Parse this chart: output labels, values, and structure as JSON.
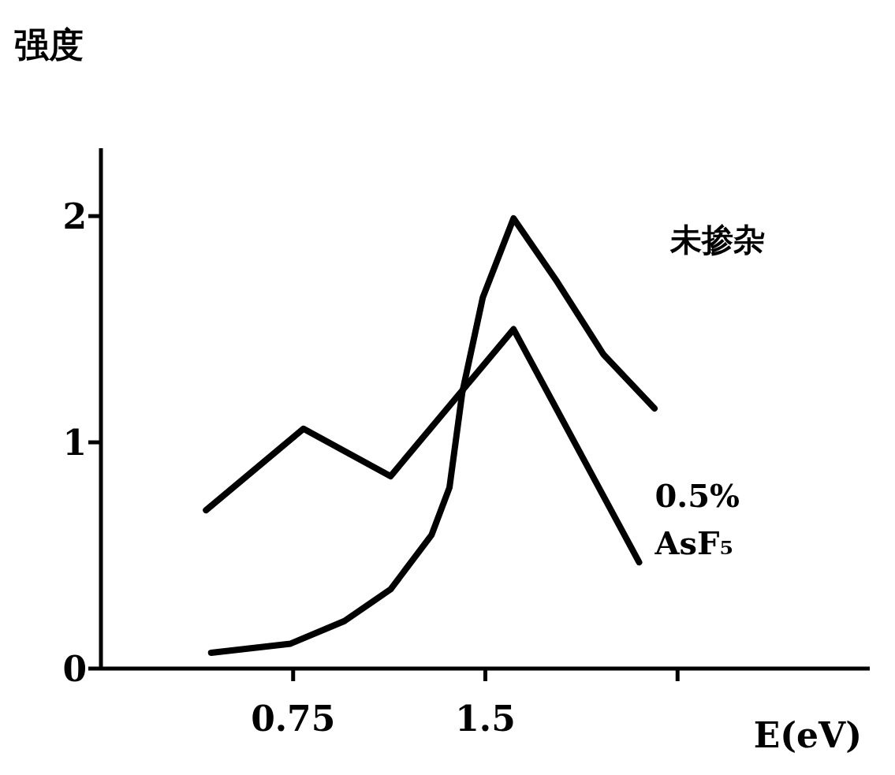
{
  "chart_data": {
    "type": "line",
    "xlabel": "E(eV)",
    "ylabel": "强度",
    "xlim": [
      0,
      3
    ],
    "xticks": [
      0.75,
      1.5,
      {
        "value": 2.25,
        "label": null
      }
    ],
    "ylim": [
      0,
      2.3
    ],
    "yticks": [
      0,
      1,
      2
    ],
    "marker": "none",
    "line_style": "solid",
    "series": [
      {
        "name": "未掺杂",
        "color": "#000000",
        "x": [
          0.43,
          0.74,
          0.95,
          1.13,
          1.29,
          1.36,
          1.41,
          1.49,
          1.61,
          1.78,
          1.96,
          2.16
        ],
        "values": [
          0.07,
          0.11,
          0.21,
          0.35,
          0.59,
          0.8,
          1.22,
          1.64,
          1.99,
          1.71,
          1.39,
          1.15
        ]
      },
      {
        "name": "0.5% AsF₅",
        "color": "#000000",
        "x": [
          0.41,
          0.79,
          1.13,
          1.61,
          2.1
        ],
        "values": [
          0.7,
          1.06,
          0.85,
          1.5,
          0.47
        ]
      }
    ]
  }
}
